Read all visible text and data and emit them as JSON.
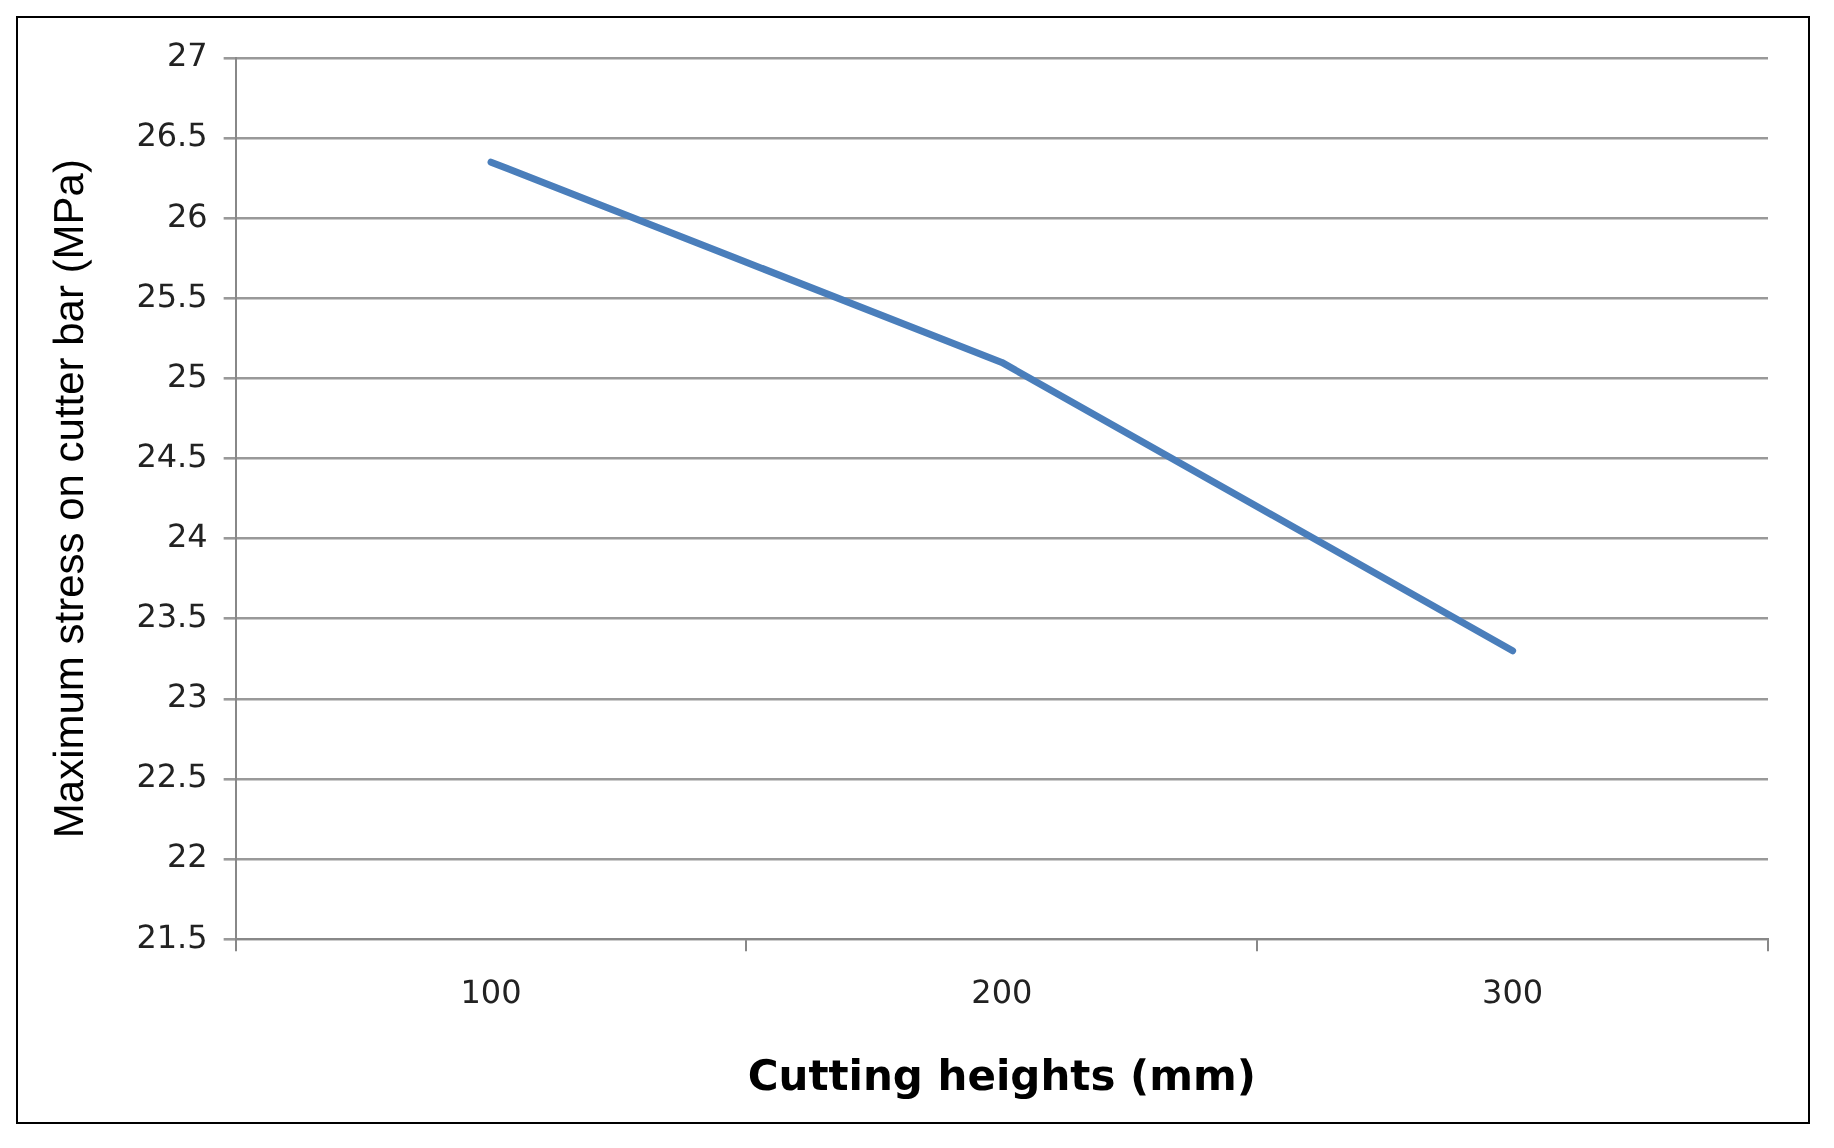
{
  "chart_data": {
    "type": "line",
    "xlabel": "Cutting heights (mm)",
    "ylabel": "Maximum stress on cutter bar (MPa)",
    "categories": [
      "100",
      "200",
      "300"
    ],
    "series": [
      {
        "color": "#4a7ebb",
        "values": [
          26.35,
          25.1,
          23.3
        ]
      }
    ],
    "ylim": [
      21.5,
      27
    ],
    "yticks": [
      21.5,
      22,
      22.5,
      23,
      23.5,
      24,
      24.5,
      25,
      25.5,
      26,
      26.5,
      27
    ],
    "grid": "y",
    "legend": false,
    "marker": "none",
    "line_style": "solid"
  }
}
